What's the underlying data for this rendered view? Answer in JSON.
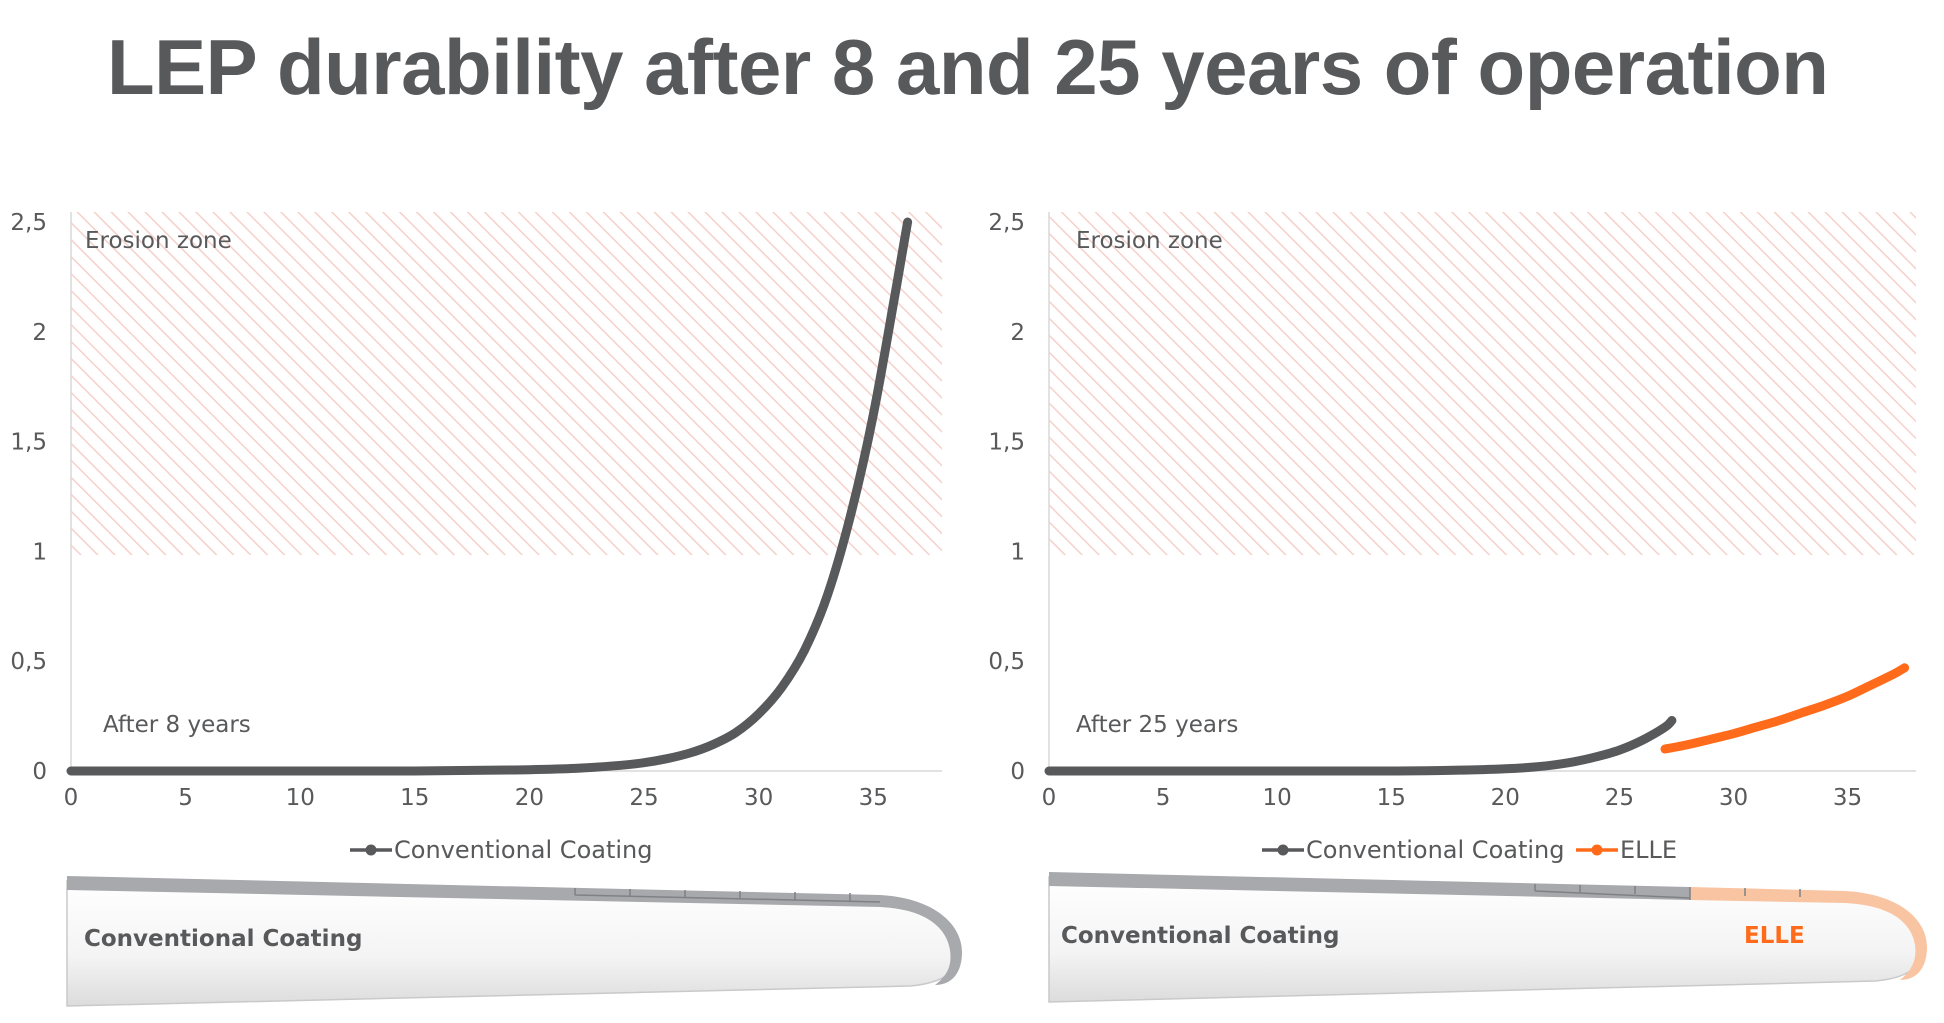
{
  "title": "LEP durability after 8 and 25 years of operation",
  "colors": {
    "conventional": "#58595b",
    "elle": "#ff6b1a",
    "erosion_hatch": "#f6d0cb"
  },
  "chart_data": [
    {
      "type": "line",
      "zone_label": "Erosion zone",
      "zone_range": [
        1,
        2.5
      ],
      "annotation": "After 8 years",
      "xticks": [
        "0",
        "5",
        "10",
        "15",
        "20",
        "25",
        "30",
        "35"
      ],
      "yticks": [
        "0",
        "0,5",
        "1",
        "1,5",
        "2",
        "2,5"
      ],
      "xlim": [
        0,
        38
      ],
      "ylim": [
        0,
        2.5
      ],
      "series": [
        {
          "name": "Conventional Coating",
          "color": "#58595b",
          "x": [
            0,
            5,
            10,
            15,
            18,
            20,
            22,
            24,
            25,
            26,
            27,
            28,
            29,
            30,
            31,
            32,
            33,
            34,
            35,
            36,
            36.5
          ],
          "y": [
            0,
            0,
            0,
            0,
            0.003,
            0.006,
            0.012,
            0.026,
            0.038,
            0.056,
            0.082,
            0.12,
            0.175,
            0.26,
            0.38,
            0.55,
            0.8,
            1.16,
            1.62,
            2.2,
            2.5
          ]
        }
      ]
    },
    {
      "type": "line",
      "zone_label": "Erosion zone",
      "zone_range": [
        1,
        2.5
      ],
      "annotation": "After 25 years",
      "xticks": [
        "0",
        "5",
        "10",
        "15",
        "20",
        "25",
        "30",
        "35"
      ],
      "yticks": [
        "0",
        "0,5",
        "1",
        "1,5",
        "2",
        "2,5"
      ],
      "xlim": [
        0,
        38
      ],
      "ylim": [
        0,
        2.5
      ],
      "series": [
        {
          "name": "Conventional Coating",
          "color": "#58595b",
          "x": [
            0,
            5,
            10,
            15,
            18,
            20,
            21,
            22,
            23,
            24,
            25,
            26,
            27,
            27.3
          ],
          "y": [
            0,
            0,
            0,
            0,
            0.004,
            0.01,
            0.016,
            0.026,
            0.042,
            0.065,
            0.095,
            0.14,
            0.2,
            0.23
          ]
        },
        {
          "name": "ELLE",
          "color": "#ff6b1a",
          "x": [
            27,
            28,
            29,
            30,
            31,
            32,
            33,
            34,
            35,
            36,
            37,
            37.5
          ],
          "y": [
            0.1,
            0.12,
            0.145,
            0.17,
            0.2,
            0.23,
            0.265,
            0.3,
            0.34,
            0.39,
            0.44,
            0.47
          ]
        }
      ]
    }
  ],
  "blades": [
    {
      "coating_label": "Conventional Coating",
      "tip_label": ""
    },
    {
      "coating_label": "Conventional Coating",
      "tip_label": "ELLE"
    }
  ]
}
